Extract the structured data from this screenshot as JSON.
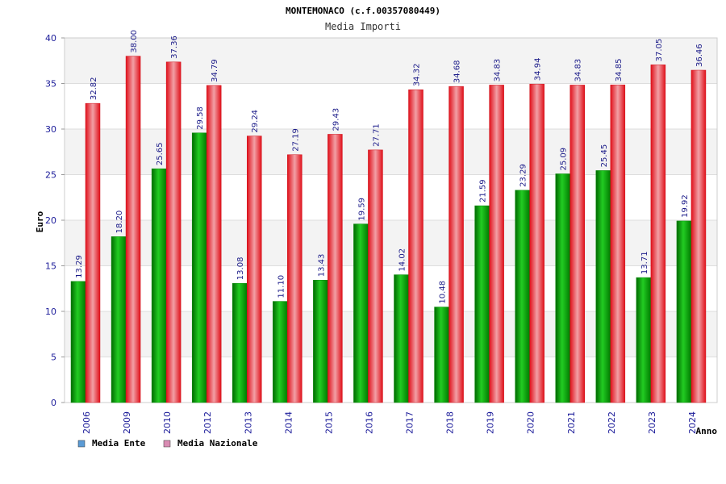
{
  "chart_data": {
    "type": "bar",
    "title": "MONTEMONACO (c.f.00357080449)",
    "subtitle": "Media Importi",
    "xlabel": "Anno",
    "ylabel": "Euro",
    "ylim": [
      0,
      40
    ],
    "yticks": [
      0,
      5,
      10,
      15,
      20,
      25,
      30,
      35,
      40
    ],
    "categories": [
      "2006",
      "2009",
      "2010",
      "2012",
      "2013",
      "2014",
      "2015",
      "2016",
      "2017",
      "2018",
      "2019",
      "2020",
      "2021",
      "2022",
      "2023",
      "2024"
    ],
    "series": [
      {
        "name": "Media Ente",
        "legend_color": "#5b9bd5",
        "bar_color": "#11a811",
        "values": [
          13.29,
          18.2,
          25.65,
          29.58,
          13.08,
          11.1,
          13.43,
          19.59,
          14.02,
          10.48,
          21.59,
          23.29,
          25.09,
          25.45,
          13.71,
          19.92
        ],
        "labels": [
          "13.29",
          "18.20",
          "25.65",
          "29.58",
          "13.08",
          "11.10",
          "13.43",
          "19.59",
          "14.02",
          "10.48",
          "21.59",
          "23.29",
          "25.09",
          "25.45",
          "13.71",
          "19.92"
        ]
      },
      {
        "name": "Media Nazionale",
        "legend_color": "#d98cb3",
        "bar_color": "#e8101c",
        "values": [
          32.82,
          38.0,
          37.36,
          34.79,
          29.24,
          27.19,
          29.43,
          27.71,
          34.32,
          34.68,
          34.83,
          34.94,
          34.83,
          34.85,
          37.05,
          36.46
        ],
        "labels": [
          "32.82",
          "38.00",
          "37.36",
          "34.79",
          "29.24",
          "27.19",
          "29.43",
          "27.71",
          "34.32",
          "34.68",
          "34.83",
          "34.94",
          "34.83",
          "34.85",
          "37.05",
          "36.46"
        ]
      }
    ],
    "grid": true,
    "legend_position": "bottom-left"
  }
}
